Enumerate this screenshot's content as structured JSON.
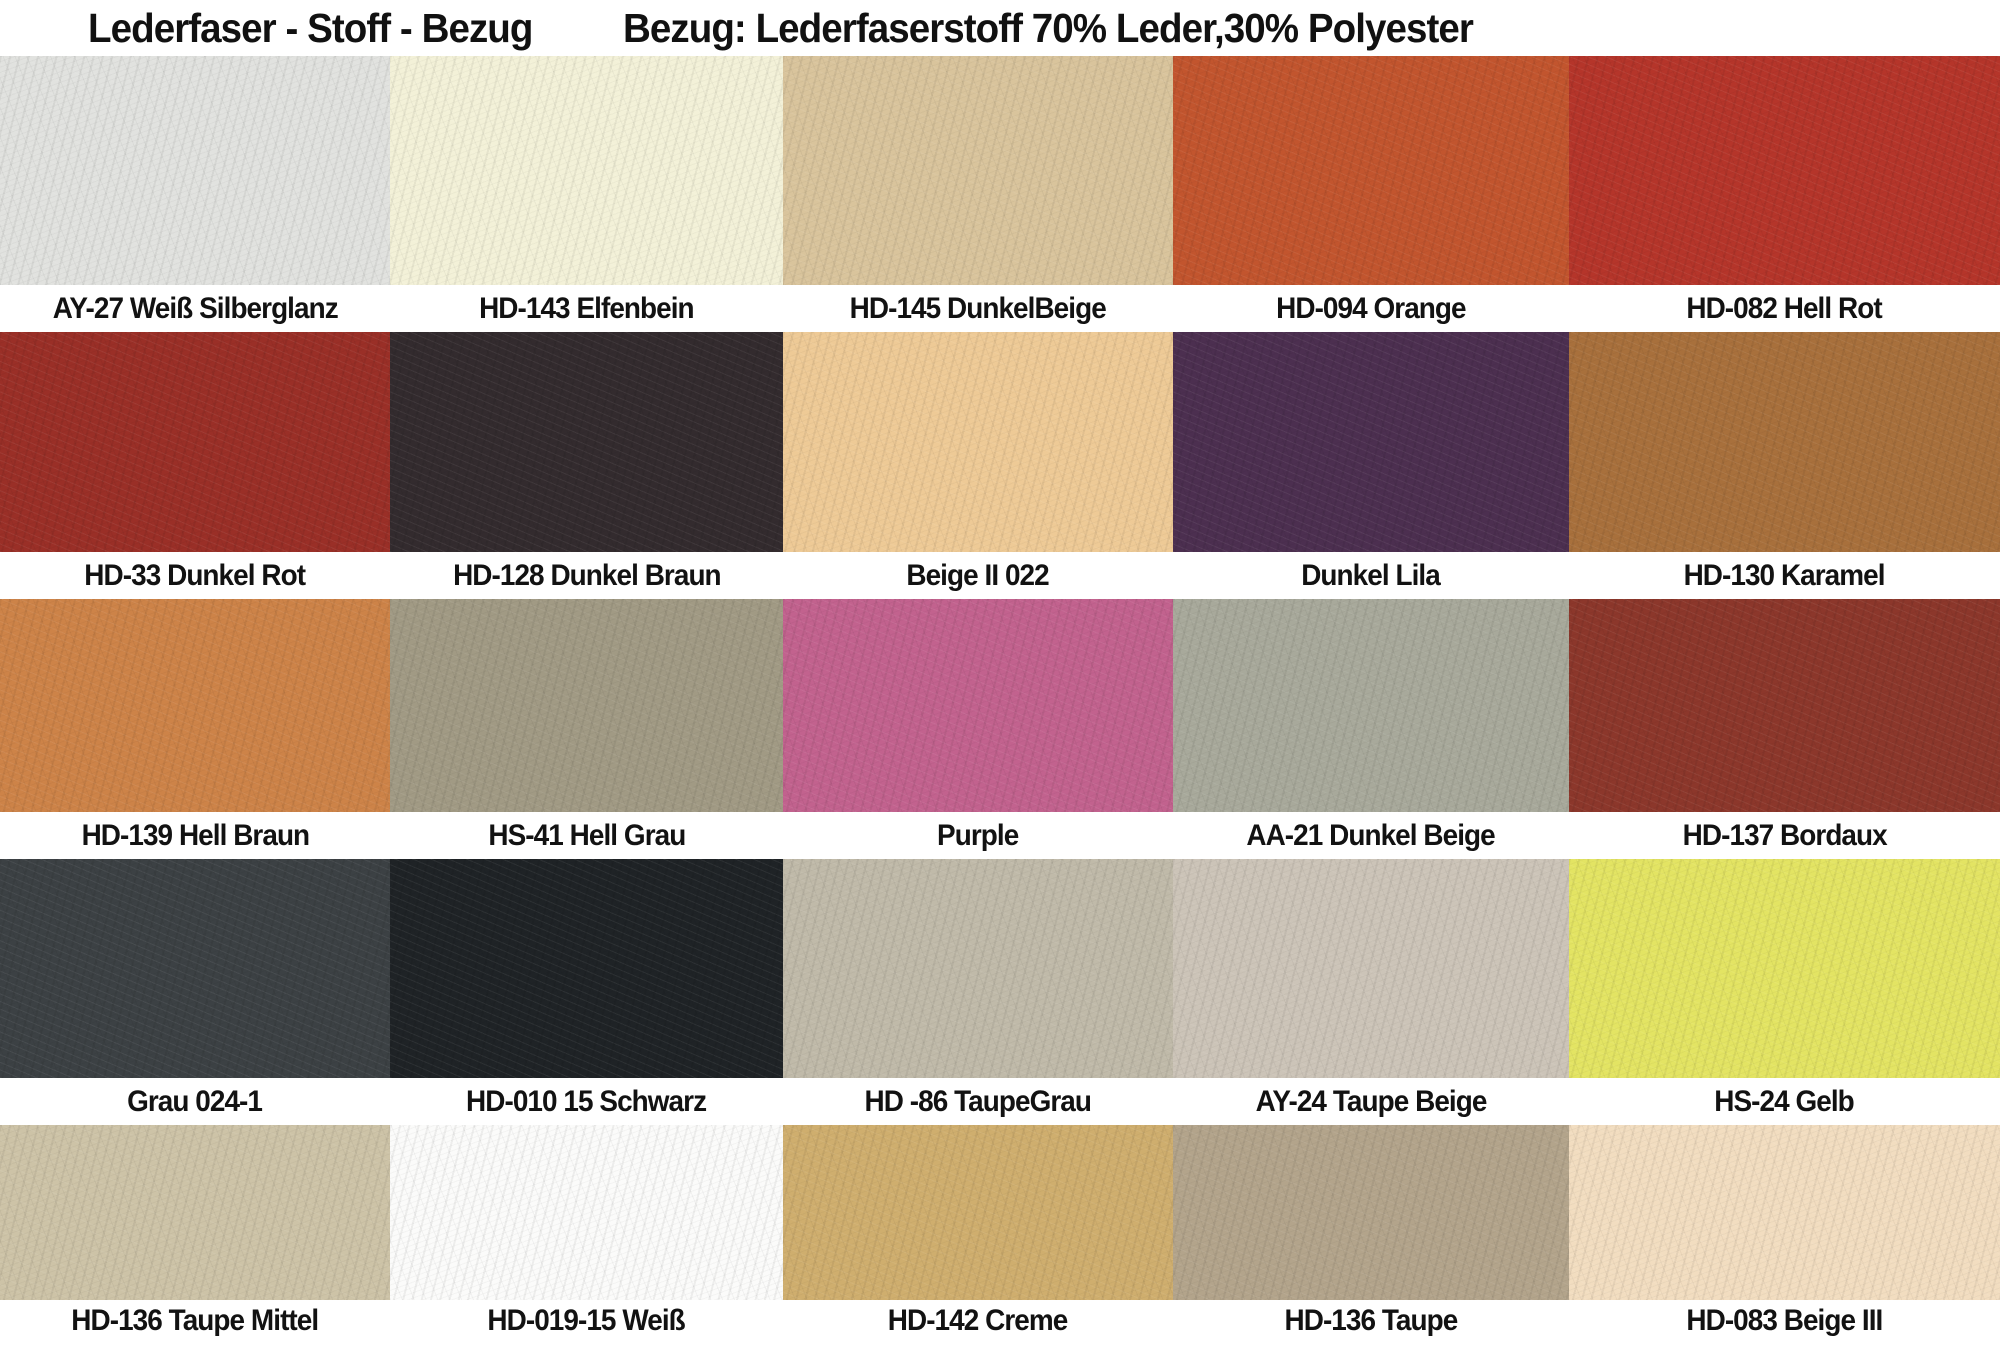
{
  "title": {
    "left": "Lederfaser - Stoff - Bezug",
    "right": "Bezug: Lederfaserstoff 70% Leder,30% Polyester"
  },
  "colors": {
    "page_background": "#ffffff",
    "label_band": "#ffffff",
    "label_text": "#121212",
    "title_text": "#111111"
  },
  "grid": {
    "rows": [
      {
        "cells": [
          {
            "label": "AY-27 Weiß Silberglanz",
            "color": "#e1e2df"
          },
          {
            "label": "HD-143 Elfenbein",
            "color": "#f3f1d8"
          },
          {
            "label": "HD-145 DunkelBeige",
            "color": "#d9c49c"
          },
          {
            "label": "HD-094 Orange",
            "color": "#c2552e"
          },
          {
            "label": "HD-082 Hell Rot",
            "color": "#b5352a"
          }
        ]
      },
      {
        "cells": [
          {
            "label": "HD-33 Dunkel Rot",
            "color": "#9a2f27"
          },
          {
            "label": "HD-128 Dunkel Braun",
            "color": "#332b2e"
          },
          {
            "label": "Beige II 022",
            "color": "#eeca96"
          },
          {
            "label": "Dunkel Lila",
            "color": "#4c2f50"
          },
          {
            "label": "HD-130 Karamel",
            "color": "#a8703c"
          }
        ]
      },
      {
        "cells": [
          {
            "label": "HD-139 Hell Braun",
            "color": "#cd8348"
          },
          {
            "label": "HS-41 Hell Grau",
            "color": "#a19a84"
          },
          {
            "label": "Purple",
            "color": "#c2628e"
          },
          {
            "label": "AA-21 Dunkel Beige",
            "color": "#a8a99b"
          },
          {
            "label": "HD-137 Bordaux",
            "color": "#8c372b"
          }
        ]
      },
      {
        "cells": [
          {
            "label": "Grau 024-1",
            "color": "#3c4144"
          },
          {
            "label": "HD-010 15 Schwarz",
            "color": "#1f2326"
          },
          {
            "label": "HD -86 TaupeGrau",
            "color": "#c0baa9"
          },
          {
            "label": "AY-24 Taupe Beige",
            "color": "#ccc4b8"
          },
          {
            "label": "HS-24 Gelb",
            "color": "#e3e463"
          }
        ]
      },
      {
        "cells": [
          {
            "label": "HD-136 Taupe Mittel",
            "color": "#cdc3a7"
          },
          {
            "label": "HD-019-15 Weiß",
            "color": "#fbfbfa"
          },
          {
            "label": "HD-142 Creme",
            "color": "#cfae6e"
          },
          {
            "label": "HD-136 Taupe",
            "color": "#b3a48b"
          },
          {
            "label": "HD-083 Beige III",
            "color": "#f2ddc0"
          }
        ]
      }
    ]
  }
}
